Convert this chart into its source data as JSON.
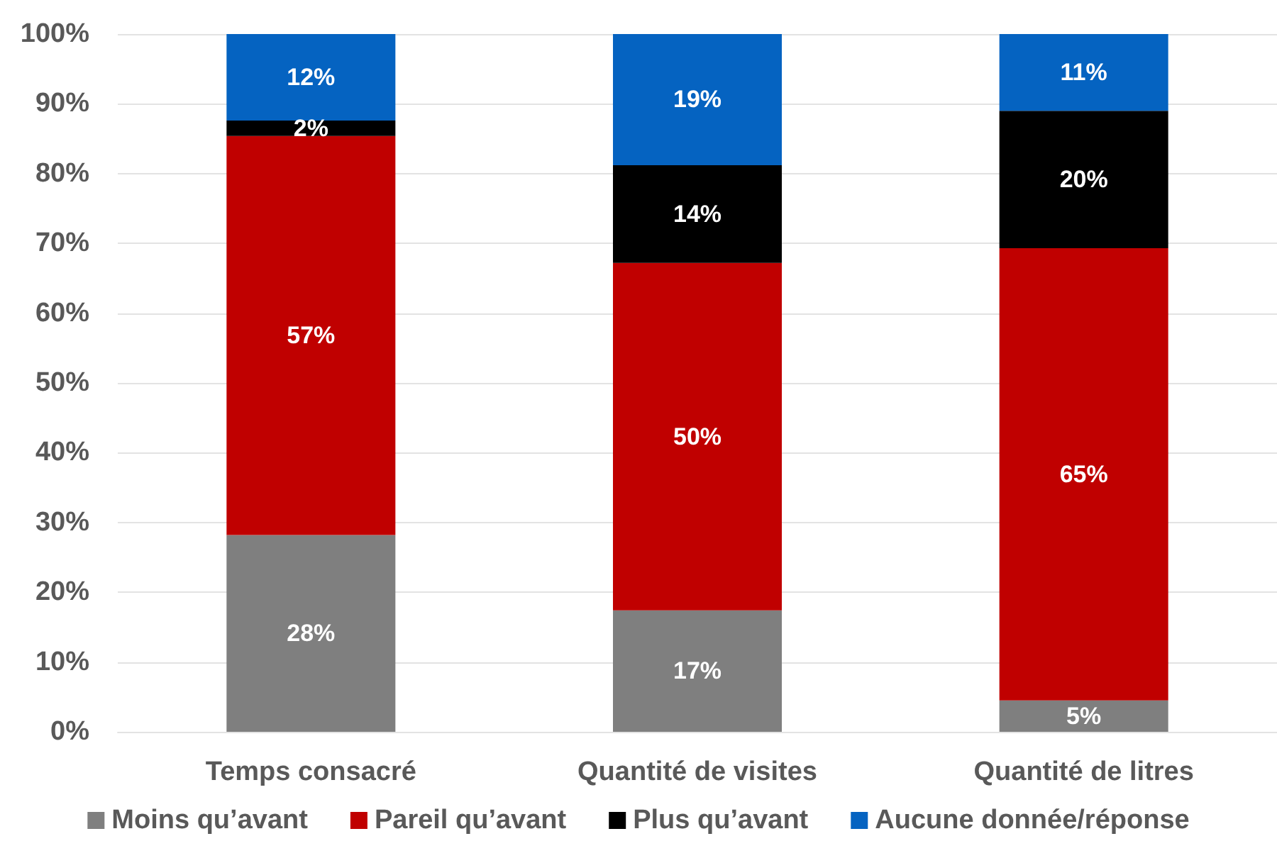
{
  "chart_data": {
    "type": "bar",
    "stacked": true,
    "categories": [
      "Temps consacré",
      "Quantité de visites",
      "Quantité de litres"
    ],
    "series": [
      {
        "name": "Moins qu’avant",
        "color": "#7f7f7f",
        "values": [
          28.2,
          17.4,
          4.5
        ],
        "value_labels": [
          "28%",
          "17%",
          "5%"
        ]
      },
      {
        "name": "Pareil qu’avant",
        "color": "#c00000",
        "values": [
          57.2,
          49.8,
          64.8
        ],
        "value_labels": [
          "57%",
          "50%",
          "65%"
        ]
      },
      {
        "name": "Plus qu’avant",
        "color": "#000000",
        "values": [
          2.2,
          14.0,
          19.7
        ],
        "value_labels": [
          "2%",
          "14%",
          "20%"
        ]
      },
      {
        "name": "Aucune donnée/réponse",
        "color": "#0563c1",
        "values": [
          12.4,
          18.8,
          11.0
        ],
        "value_labels": [
          "12%",
          "19%",
          "11%"
        ]
      }
    ],
    "ylim": [
      0,
      100
    ],
    "yticks": [
      {
        "value": 0,
        "label": "0%"
      },
      {
        "value": 10,
        "label": "10%"
      },
      {
        "value": 20,
        "label": "20%"
      },
      {
        "value": 30,
        "label": "30%"
      },
      {
        "value": 40,
        "label": "40%"
      },
      {
        "value": 50,
        "label": "50%"
      },
      {
        "value": 60,
        "label": "60%"
      },
      {
        "value": 70,
        "label": "70%"
      },
      {
        "value": 80,
        "label": "80%"
      },
      {
        "value": 90,
        "label": "90%"
      },
      {
        "value": 100,
        "label": "100%"
      }
    ],
    "grid": "y",
    "legend": "bottom"
  }
}
